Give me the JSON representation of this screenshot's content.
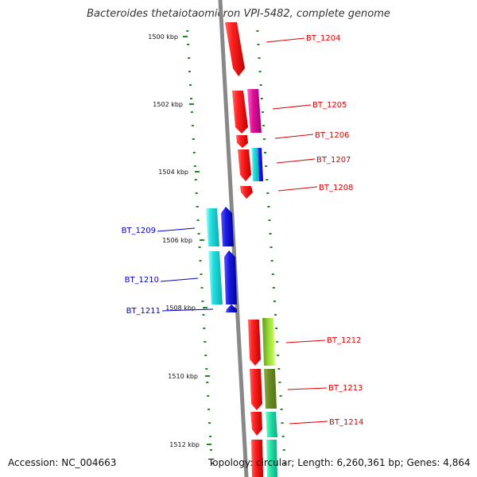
{
  "header": {
    "title": "Bacteroides thetaiotaomicron VPI-5482, complete genome"
  },
  "footer": {
    "accession": "Accession: NC_004663",
    "topology": "Topology: circular; Length: 6,260,361 bp; Genes: 4,864"
  },
  "scale": {
    "unit": "kbp",
    "ticks": [
      {
        "label": "1500 kbp",
        "value": 1500
      },
      {
        "label": "1502 kbp",
        "value": 1502
      },
      {
        "label": "1504 kbp",
        "value": 1504
      },
      {
        "label": "1506 kbp",
        "value": 1506
      },
      {
        "label": "1508 kbp",
        "value": 1508
      },
      {
        "label": "1510 kbp",
        "value": 1510
      },
      {
        "label": "1512 kbp",
        "value": 1512
      }
    ]
  },
  "genes": [
    {
      "label": "BT_1204",
      "strand": "forward"
    },
    {
      "label": "BT_1205",
      "strand": "forward"
    },
    {
      "label": "BT_1206",
      "strand": "forward"
    },
    {
      "label": "BT_1207",
      "strand": "forward"
    },
    {
      "label": "BT_1208",
      "strand": "forward"
    },
    {
      "label": "BT_1209",
      "strand": "reverse"
    },
    {
      "label": "BT_1210",
      "strand": "reverse"
    },
    {
      "label": "BT_1211",
      "strand": "reverse"
    },
    {
      "label": "BT_1212",
      "strand": "forward"
    },
    {
      "label": "BT_1213",
      "strand": "forward"
    },
    {
      "label": "BT_1214",
      "strand": "forward"
    }
  ],
  "colors": {
    "forward_label": "#dd0000",
    "reverse_label": "#0000cc",
    "backbone": "#888888",
    "tick": "#228822",
    "strand_main": "#ee1111",
    "magenta": "#e0109a",
    "cyan": "#22dddd",
    "blue": "#1a1ae0",
    "lime": "#99ee33",
    "olive": "#669922",
    "seafoam": "#22ddaa"
  }
}
